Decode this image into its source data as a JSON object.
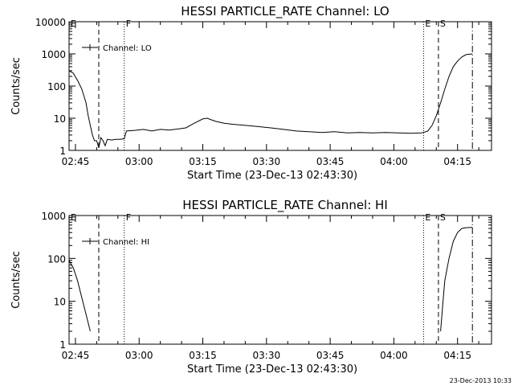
{
  "footer_timestamp": "23-Dec-2013 10:33",
  "chart_data": [
    {
      "type": "line",
      "title": "HESSI PARTICLE_RATE Channel: LO",
      "xlabel": "Start Time (23-Dec-13 02:43:30)",
      "ylabel": "Counts/sec",
      "y_scale": "log",
      "ylim": [
        1,
        10000
      ],
      "xlim": [
        "02:43:30",
        "04:23:00"
      ],
      "x_ticks": [
        "02:45",
        "03:00",
        "03:15",
        "03:30",
        "03:45",
        "04:00",
        "04:15"
      ],
      "y_ticks": [
        "1",
        "10",
        "100",
        "1000",
        "10000"
      ],
      "legend": "Channel: LO",
      "legend_position": "top-left",
      "markers": [
        {
          "label": "E",
          "time": "02:43:30",
          "style": "dotted"
        },
        {
          "label": "",
          "time": "02:50:30",
          "style": "dashed"
        },
        {
          "label": "F",
          "time": "02:56:30",
          "style": "dotted"
        },
        {
          "label": "E",
          "time": "04:07:00",
          "style": "dotted"
        },
        {
          "label": "S",
          "time": "04:10:30",
          "style": "dashed"
        },
        {
          "label": "",
          "time": "04:18:30",
          "style": "dashdot"
        }
      ],
      "series": [
        {
          "points": [
            [
              "02:43:30",
              300
            ],
            [
              "02:44:30",
              250
            ],
            [
              "02:45:30",
              150
            ],
            [
              "02:46:30",
              80
            ],
            [
              "02:47:30",
              30
            ],
            [
              "02:48:00",
              12
            ],
            [
              "02:48:30",
              6
            ],
            [
              "02:49:00",
              3
            ],
            [
              "02:49:30",
              2
            ],
            [
              "02:50:00",
              2
            ],
            [
              "02:50:30",
              1.2
            ],
            [
              "02:51:00",
              2.5
            ],
            [
              "02:51:30",
              2
            ],
            [
              "02:52:00",
              1.4
            ],
            [
              "02:52:30",
              2.2
            ],
            [
              "02:53:30",
              2.1
            ],
            [
              "02:54:30",
              2.2
            ],
            [
              "02:55:30",
              2.2
            ],
            [
              "02:56:30",
              2.3
            ],
            [
              "02:57:00",
              4
            ],
            [
              "02:59:00",
              4.2
            ],
            [
              "03:01:00",
              4.5
            ],
            [
              "03:03:00",
              4
            ],
            [
              "03:05:00",
              4.5
            ],
            [
              "03:07:00",
              4.3
            ],
            [
              "03:09:00",
              4.6
            ],
            [
              "03:11:00",
              5
            ],
            [
              "03:13:00",
              7
            ],
            [
              "03:15:00",
              9.5
            ],
            [
              "03:16:00",
              10
            ],
            [
              "03:18:00",
              8
            ],
            [
              "03:20:00",
              7
            ],
            [
              "03:22:00",
              6.5
            ],
            [
              "03:25:00",
              6
            ],
            [
              "03:28:00",
              5.5
            ],
            [
              "03:31:00",
              5
            ],
            [
              "03:34:00",
              4.5
            ],
            [
              "03:37:00",
              4
            ],
            [
              "03:40:00",
              3.8
            ],
            [
              "03:43:00",
              3.6
            ],
            [
              "03:46:00",
              3.8
            ],
            [
              "03:49:00",
              3.5
            ],
            [
              "03:52:00",
              3.6
            ],
            [
              "03:55:00",
              3.5
            ],
            [
              "03:58:00",
              3.6
            ],
            [
              "04:01:00",
              3.5
            ],
            [
              "04:04:00",
              3.4
            ],
            [
              "04:06:30",
              3.5
            ],
            [
              "04:07:00",
              3.6
            ],
            [
              "04:08:00",
              4
            ],
            [
              "04:09:00",
              6
            ],
            [
              "04:10:00",
              12
            ],
            [
              "04:11:00",
              30
            ],
            [
              "04:12:00",
              80
            ],
            [
              "04:13:00",
              200
            ],
            [
              "04:14:00",
              400
            ],
            [
              "04:15:00",
              600
            ],
            [
              "04:16:00",
              800
            ],
            [
              "04:17:00",
              950
            ],
            [
              "04:18:30",
              1000
            ]
          ]
        }
      ]
    },
    {
      "type": "line",
      "title": "HESSI PARTICLE_RATE Channel: HI",
      "xlabel": "Start Time (23-Dec-13 02:43:30)",
      "ylabel": "Counts/sec",
      "y_scale": "log",
      "ylim": [
        1,
        1000
      ],
      "xlim": [
        "02:43:30",
        "04:23:00"
      ],
      "x_ticks": [
        "02:45",
        "03:00",
        "03:15",
        "03:30",
        "03:45",
        "04:00",
        "04:15"
      ],
      "y_ticks": [
        "1",
        "10",
        "100",
        "1000"
      ],
      "legend": "Channel: HI",
      "legend_position": "top-left",
      "markers": [
        {
          "label": "E",
          "time": "02:43:30",
          "style": "dotted"
        },
        {
          "label": "",
          "time": "02:50:30",
          "style": "dashed"
        },
        {
          "label": "F",
          "time": "02:56:30",
          "style": "dotted"
        },
        {
          "label": "E",
          "time": "04:07:00",
          "style": "dotted"
        },
        {
          "label": "S",
          "time": "04:10:30",
          "style": "dashed"
        },
        {
          "label": "",
          "time": "04:18:30",
          "style": "dashdot"
        }
      ],
      "series": [
        {
          "points": [
            [
              "02:43:30",
              90
            ],
            [
              "02:44:30",
              60
            ],
            [
              "02:45:30",
              30
            ],
            [
              "02:46:30",
              12
            ],
            [
              "02:47:30",
              5
            ],
            [
              "02:48:30",
              2
            ]
          ]
        },
        {
          "points": [
            [
              "04:11:00",
              2
            ],
            [
              "04:11:30",
              8
            ],
            [
              "04:12:00",
              30
            ],
            [
              "04:13:00",
              100
            ],
            [
              "04:14:00",
              250
            ],
            [
              "04:15:00",
              400
            ],
            [
              "04:16:00",
              500
            ],
            [
              "04:17:00",
              520
            ],
            [
              "04:18:30",
              530
            ]
          ]
        }
      ]
    }
  ]
}
